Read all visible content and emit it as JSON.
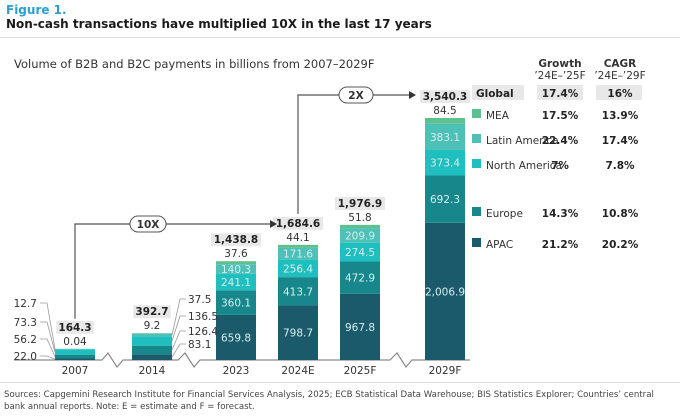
{
  "figure_label": "Figure 1.",
  "figure_title": "Non-cash transactions have multiplied 10X in the last 17 years",
  "footer": "Sources: Capgemini Research Institute for Financial Services Analysis, 2025; ECB Statistical Data Warehouse; BIS Statistics Explorer; Countries’ central bank annual reports. Note: E = estimate and F = forecast.",
  "chart_data": {
    "type": "bar",
    "stacked": true,
    "title": "Volume of B2B and B2C payments in billions from 2007–2029F",
    "xlabel": "",
    "ylabel": "",
    "categories": [
      "2007",
      "2014",
      "2023",
      "2024E",
      "2025F",
      "2029F"
    ],
    "series": [
      {
        "name": "APAC",
        "color": "#1b5a6b",
        "values": [
          22.0,
          83.1,
          659.8,
          798.7,
          967.8,
          2006.9
        ],
        "labels": [
          "22.0",
          "83.1",
          "659.8",
          "798.7",
          "967.8",
          "2,006.9"
        ]
      },
      {
        "name": "Europe",
        "color": "#17878c",
        "values": [
          56.2,
          126.4,
          360.1,
          413.7,
          472.9,
          692.3
        ],
        "labels": [
          "56.2",
          "126.4",
          "360.1",
          "413.7",
          "472.9",
          "692.3"
        ]
      },
      {
        "name": "North America",
        "color": "#1fbfbf",
        "values": [
          73.3,
          136.5,
          241.1,
          256.4,
          274.5,
          373.4
        ],
        "labels": [
          "73.3",
          "136.5",
          "241.1",
          "256.4",
          "274.5",
          "373.4"
        ]
      },
      {
        "name": "Latin America",
        "color": "#4dc1b7",
        "values": [
          12.7,
          37.5,
          140.3,
          171.6,
          209.9,
          383.1
        ],
        "labels": [
          "12.7",
          "37.5",
          "140.3",
          "171.6",
          "209.9",
          "383.1"
        ]
      },
      {
        "name": "MEA",
        "color": "#5cc08f",
        "values": [
          0.04,
          9.2,
          37.6,
          44.1,
          51.8,
          84.5
        ],
        "labels": [
          "0.04",
          "9.2",
          "37.6",
          "44.1",
          "51.8",
          "84.5"
        ]
      }
    ],
    "totals": [
      "164.3",
      "392.7",
      "1,438.8",
      "1,684.6",
      "1,976.9",
      "3,540.3"
    ],
    "annotations": [
      {
        "label": "10X",
        "from": "2007",
        "to": "2024E"
      },
      {
        "label": "2X",
        "from": "2024E",
        "to": "2029F"
      }
    ],
    "growth_table": {
      "headers": [
        [
          "Growth",
          "’24E–’25F"
        ],
        [
          "CAGR",
          "’24E–’29F"
        ]
      ],
      "rows": [
        {
          "region": "Global",
          "growth": "17.4%",
          "cagr": "16%"
        },
        {
          "region": "MEA",
          "growth": "17.5%",
          "cagr": "13.9%"
        },
        {
          "region": "Latin America",
          "growth": "22.4%",
          "cagr": "17.4%"
        },
        {
          "region": "North America",
          "growth": "7%",
          "cagr": "7.8%"
        },
        {
          "region": "Europe",
          "growth": "14.3%",
          "cagr": "10.8%"
        },
        {
          "region": "APAC",
          "growth": "21.2%",
          "cagr": "20.2%"
        }
      ]
    },
    "axis_breaks": true,
    "grid": false,
    "legend": "right"
  }
}
